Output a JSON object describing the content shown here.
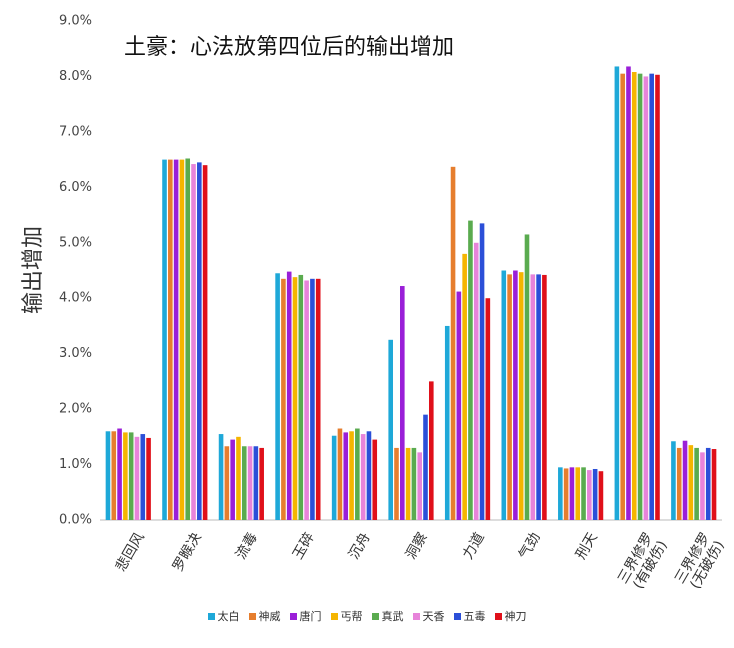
{
  "chart_data": {
    "type": "bar",
    "title": "土豪：心法放第四位后的输出增加",
    "y_label": "输出增加",
    "categories": [
      "悲回风",
      "罗睺决",
      "流毒",
      "玉碎",
      "沉舟",
      "洞察",
      "力道",
      "气劲",
      "刑天",
      "三界修罗\n(有破伤)",
      "三界修罗\n(无破伤)"
    ],
    "series": [
      {
        "name": "太白",
        "color": "#1ea8d8",
        "values": [
          1.6,
          6.5,
          1.55,
          4.45,
          1.52,
          3.25,
          3.5,
          4.5,
          0.95,
          8.18,
          1.42
        ]
      },
      {
        "name": "神威",
        "color": "#e67e2e",
        "values": [
          1.6,
          6.5,
          1.33,
          4.35,
          1.65,
          1.3,
          6.37,
          4.43,
          0.93,
          8.05,
          1.3
        ]
      },
      {
        "name": "唐门",
        "color": "#9a1fd8",
        "values": [
          1.65,
          6.5,
          1.45,
          4.48,
          1.58,
          4.22,
          4.12,
          4.5,
          0.95,
          8.18,
          1.43
        ]
      },
      {
        "name": "丐帮",
        "color": "#f5b500",
        "values": [
          1.58,
          6.5,
          1.5,
          4.38,
          1.6,
          1.3,
          4.8,
          4.47,
          0.95,
          8.08,
          1.35
        ]
      },
      {
        "name": "真武",
        "color": "#5aab4f",
        "values": [
          1.58,
          6.52,
          1.33,
          4.42,
          1.65,
          1.3,
          5.4,
          5.15,
          0.95,
          8.05,
          1.3
        ]
      },
      {
        "name": "天香",
        "color": "#e784da",
        "values": [
          1.5,
          6.42,
          1.33,
          4.32,
          1.55,
          1.22,
          5.0,
          4.43,
          0.9,
          8.0,
          1.22
        ]
      },
      {
        "name": "五毒",
        "color": "#2b4fd8",
        "values": [
          1.55,
          6.45,
          1.33,
          4.35,
          1.6,
          1.9,
          5.35,
          4.43,
          0.92,
          8.05,
          1.3
        ]
      },
      {
        "name": "神刀",
        "color": "#e0101a",
        "values": [
          1.48,
          6.4,
          1.3,
          4.35,
          1.45,
          2.5,
          4.0,
          4.42,
          0.88,
          8.03,
          1.28
        ]
      }
    ],
    "ylim": [
      0,
      9
    ],
    "yticks": [
      {
        "value": 0,
        "label": "0.0%"
      },
      {
        "value": 1,
        "label": "1.0%"
      },
      {
        "value": 2,
        "label": "2.0%"
      },
      {
        "value": 3,
        "label": "3.0%"
      },
      {
        "value": 4,
        "label": "4.0%"
      },
      {
        "value": 5,
        "label": "5.0%"
      },
      {
        "value": 6,
        "label": "6.0%"
      },
      {
        "value": 7,
        "label": "7.0%"
      },
      {
        "value": 8,
        "label": "8.0%"
      },
      {
        "value": 9,
        "label": "9.0%"
      }
    ],
    "grid": false
  }
}
